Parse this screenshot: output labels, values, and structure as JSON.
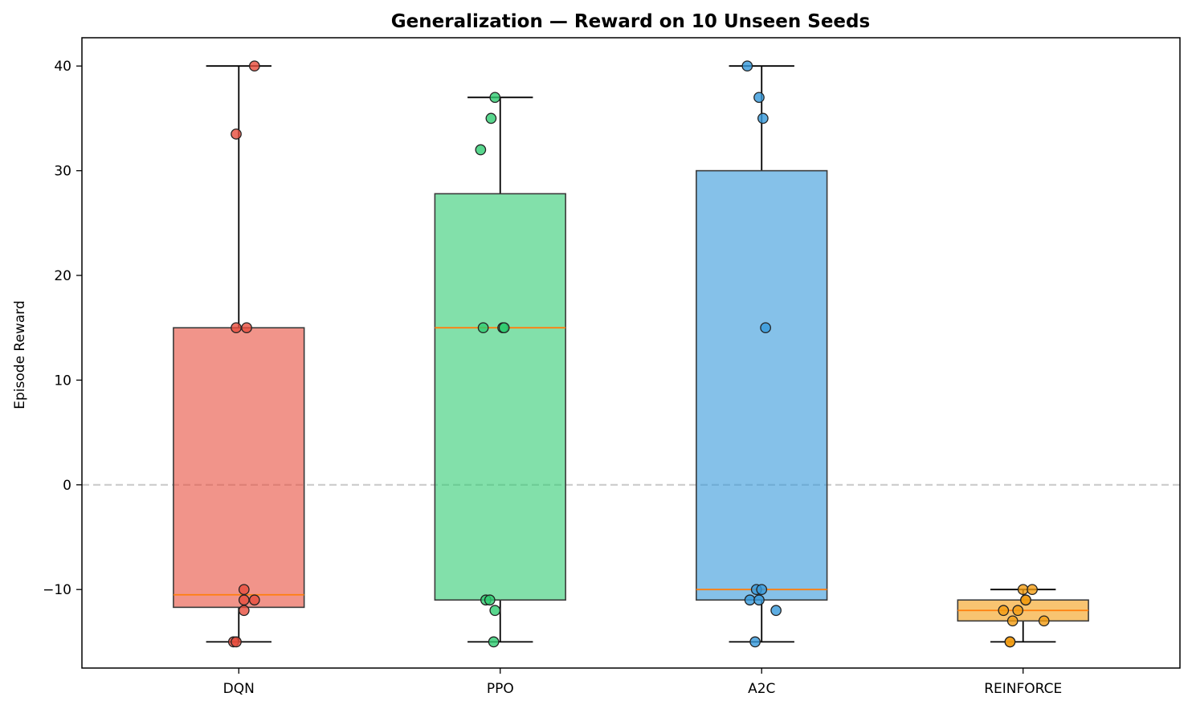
{
  "chart_data": {
    "type": "box",
    "title": "Generalization — Reward on 10 Unseen Seeds",
    "xlabel": "",
    "ylabel": "Episode Reward",
    "ylim": [
      -17.5,
      42.7
    ],
    "yticks": [
      -10,
      0,
      10,
      20,
      30,
      40
    ],
    "reference_line": {
      "y": 0,
      "style": "dashed",
      "color": "#cccccc"
    },
    "categories": [
      "DQN",
      "PPO",
      "A2C",
      "REINFORCE"
    ],
    "series": [
      {
        "name": "DQN",
        "color": "#e74c3c",
        "box": {
          "whisker_low": -15,
          "q1": -11.7,
          "median": -10.5,
          "q3": 15,
          "whisker_high": 40
        },
        "points": [
          {
            "jitter": 0.06,
            "value": 40
          },
          {
            "jitter": -0.01,
            "value": 33.5
          },
          {
            "jitter": -0.01,
            "value": 15
          },
          {
            "jitter": 0.03,
            "value": 15
          },
          {
            "jitter": 0.02,
            "value": -10
          },
          {
            "jitter": 0.02,
            "value": -11
          },
          {
            "jitter": 0.06,
            "value": -11
          },
          {
            "jitter": 0.02,
            "value": -12
          },
          {
            "jitter": -0.02,
            "value": -15
          },
          {
            "jitter": -0.01,
            "value": -15
          }
        ]
      },
      {
        "name": "PPO",
        "color": "#2ecc71",
        "box": {
          "whisker_low": -15,
          "q1": -11,
          "median": 15,
          "q3": 27.8,
          "whisker_high": 37
        },
        "points": [
          {
            "jitter": -0.02,
            "value": 37
          },
          {
            "jitter": -0.035,
            "value": 35
          },
          {
            "jitter": -0.075,
            "value": 32
          },
          {
            "jitter": -0.065,
            "value": 15
          },
          {
            "jitter": 0.01,
            "value": 15
          },
          {
            "jitter": 0.015,
            "value": 15
          },
          {
            "jitter": -0.055,
            "value": -11
          },
          {
            "jitter": -0.04,
            "value": -11
          },
          {
            "jitter": -0.02,
            "value": -12
          },
          {
            "jitter": -0.025,
            "value": -15
          }
        ]
      },
      {
        "name": "A2C",
        "color": "#3498db",
        "box": {
          "whisker_low": -15,
          "q1": -11,
          "median": -10,
          "q3": 30,
          "whisker_high": 40
        },
        "points": [
          {
            "jitter": -0.055,
            "value": 40
          },
          {
            "jitter": -0.01,
            "value": 37
          },
          {
            "jitter": 0.005,
            "value": 35
          },
          {
            "jitter": 0.015,
            "value": 15
          },
          {
            "jitter": -0.02,
            "value": -10
          },
          {
            "jitter": 0.0,
            "value": -10
          },
          {
            "jitter": -0.045,
            "value": -11
          },
          {
            "jitter": -0.01,
            "value": -11
          },
          {
            "jitter": 0.055,
            "value": -12
          },
          {
            "jitter": -0.025,
            "value": -15
          }
        ]
      },
      {
        "name": "REINFORCE",
        "color": "#f39c12",
        "box": {
          "whisker_low": -15,
          "q1": -13,
          "median": -12,
          "q3": -11,
          "whisker_high": -10
        },
        "points": [
          {
            "jitter": 0.0,
            "value": -10
          },
          {
            "jitter": 0.035,
            "value": -10
          },
          {
            "jitter": 0.01,
            "value": -11
          },
          {
            "jitter": 0.01,
            "value": -11
          },
          {
            "jitter": -0.075,
            "value": -12
          },
          {
            "jitter": -0.02,
            "value": -12
          },
          {
            "jitter": -0.04,
            "value": -13
          },
          {
            "jitter": 0.08,
            "value": -13
          },
          {
            "jitter": -0.05,
            "value": -15
          },
          {
            "jitter": -0.05,
            "value": -15
          }
        ]
      }
    ]
  }
}
